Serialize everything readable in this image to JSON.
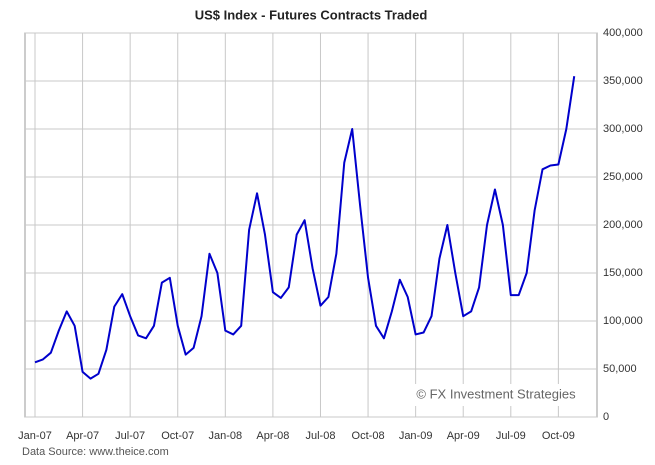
{
  "chart_data": {
    "type": "line",
    "title": "US$ Index  - Futures Contracts Traded",
    "source": "Data Source: www.theice.com",
    "annotation": "© FX Investment Strategies",
    "categories": [
      "Jan-07",
      null,
      null,
      null,
      null,
      null,
      "Apr-07",
      null,
      null,
      null,
      null,
      null,
      "Jul-07",
      null,
      null,
      null,
      null,
      null,
      "Oct-07",
      null,
      null,
      null,
      null,
      null,
      "Jan-08",
      null,
      null,
      null,
      null,
      null,
      "Apr-08",
      null,
      null,
      null,
      null,
      null,
      "Jul-08",
      null,
      null,
      null,
      null,
      null,
      "Oct-08",
      null,
      null,
      null,
      null,
      null,
      "Jan-09",
      null,
      null,
      null,
      null,
      null,
      "Apr-09",
      null,
      null,
      null,
      null,
      null,
      "Jul-09",
      null,
      null,
      null,
      null,
      null,
      "Oct-09",
      null,
      null
    ],
    "series": [
      {
        "name": "Futures Contracts Traded",
        "color": "#0000cc",
        "values": [
          57000,
          60000,
          67000,
          90000,
          110000,
          95000,
          47000,
          40000,
          45000,
          70000,
          115000,
          128000,
          105000,
          85000,
          82000,
          95000,
          140000,
          145000,
          95000,
          65000,
          72000,
          105000,
          170000,
          150000,
          90000,
          86000,
          95000,
          195000,
          233000,
          190000,
          130000,
          124000,
          135000,
          190000,
          205000,
          155000,
          116000,
          125000,
          170000,
          265000,
          300000,
          220000,
          145000,
          95000,
          82000,
          110000,
          143000,
          125000,
          86000,
          88000,
          105000,
          165000,
          200000,
          150000,
          105000,
          110000,
          135000,
          200000,
          237000,
          200000,
          127000,
          127000,
          150000,
          215000,
          258000,
          262000,
          263000,
          300000,
          355000
        ]
      }
    ],
    "ylim": [
      0,
      400000
    ],
    "yticks": [
      0,
      {
        "value": 50000,
        "label": "50,000"
      },
      {
        "value": 100000,
        "label": "100,000"
      },
      {
        "value": 150000,
        "label": "150,000"
      },
      {
        "value": 200000,
        "label": "200,000"
      },
      {
        "value": 250000,
        "label": "250,000"
      },
      {
        "value": 300000,
        "label": "300,000"
      },
      {
        "value": 350000,
        "label": "350,000"
      },
      {
        "value": 400000,
        "label": "400,000"
      }
    ],
    "grid": true
  }
}
